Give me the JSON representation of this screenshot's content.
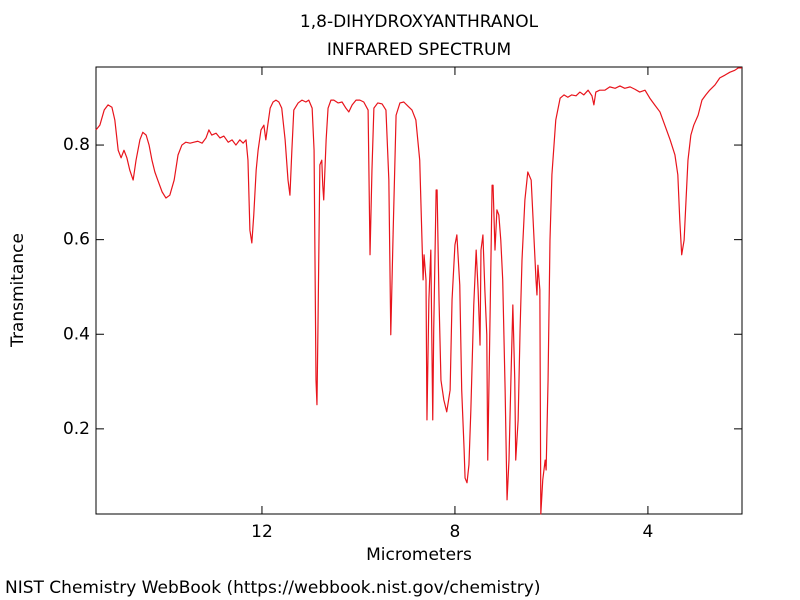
{
  "chart_data": {
    "type": "line",
    "title": "1,8-DIHYDROXYANTHRANOL",
    "subtitle": "INFRARED SPECTRUM",
    "x_label": "Micrometers",
    "y_label": "Transmitance",
    "footer": "NIST Chemistry WebBook (https://webbook.nist.gov/chemistry)",
    "color": "#e8141c",
    "xlim": [
      15.44,
      2.05
    ],
    "ylim": [
      0.02,
      0.965
    ],
    "xticks": [
      12,
      8,
      4
    ],
    "yticks": [
      0.2,
      0.4,
      0.6,
      0.8
    ],
    "grid": false,
    "x": [
      15.44,
      15.36,
      15.27,
      15.19,
      15.11,
      15.05,
      14.98,
      14.92,
      14.86,
      14.8,
      14.74,
      14.67,
      14.61,
      14.53,
      14.47,
      14.4,
      14.34,
      14.28,
      14.22,
      14.16,
      14.07,
      13.99,
      13.91,
      13.82,
      13.74,
      13.66,
      13.58,
      13.49,
      13.41,
      13.33,
      13.24,
      13.16,
      13.1,
      13.04,
      12.95,
      12.87,
      12.79,
      12.7,
      12.62,
      12.54,
      12.46,
      12.39,
      12.33,
      12.29,
      12.25,
      12.21,
      12.17,
      12.12,
      12.08,
      12.02,
      11.96,
      11.92,
      11.88,
      11.83,
      11.77,
      11.71,
      11.65,
      11.59,
      11.52,
      11.46,
      11.42,
      11.38,
      11.34,
      11.25,
      11.17,
      11.09,
      11.03,
      10.96,
      10.92,
      10.88,
      10.86,
      10.84,
      10.8,
      10.76,
      10.74,
      10.72,
      10.67,
      10.63,
      10.57,
      10.51,
      10.42,
      10.34,
      10.26,
      10.2,
      10.13,
      10.05,
      9.97,
      9.89,
      9.8,
      9.76,
      9.72,
      9.68,
      9.6,
      9.51,
      9.43,
      9.37,
      9.33,
      9.28,
      9.22,
      9.14,
      9.06,
      8.97,
      8.89,
      8.81,
      8.73,
      8.66,
      8.64,
      8.6,
      8.58,
      8.54,
      8.5,
      8.46,
      8.44,
      8.39,
      8.37,
      8.33,
      8.29,
      8.23,
      8.17,
      8.1,
      8.06,
      8.0,
      7.96,
      7.9,
      7.86,
      7.81,
      7.79,
      7.75,
      7.71,
      7.67,
      7.61,
      7.56,
      7.52,
      7.48,
      7.46,
      7.42,
      7.38,
      7.34,
      7.32,
      7.27,
      7.23,
      7.21,
      7.17,
      7.13,
      7.09,
      7.05,
      7.01,
      6.96,
      6.92,
      6.88,
      6.84,
      6.8,
      6.76,
      6.74,
      6.69,
      6.65,
      6.61,
      6.55,
      6.49,
      6.42,
      6.38,
      6.32,
      6.3,
      6.28,
      6.24,
      6.22,
      6.18,
      6.13,
      6.11,
      6.07,
      6.03,
      5.99,
      5.91,
      5.82,
      5.74,
      5.66,
      5.58,
      5.49,
      5.41,
      5.33,
      5.24,
      5.16,
      5.12,
      5.08,
      5.0,
      4.89,
      4.79,
      4.68,
      4.58,
      4.48,
      4.37,
      4.27,
      4.17,
      4.06,
      3.96,
      3.86,
      3.75,
      3.65,
      3.54,
      3.44,
      3.38,
      3.34,
      3.3,
      3.25,
      3.21,
      3.17,
      3.11,
      3.05,
      2.96,
      2.88,
      2.8,
      2.72,
      2.61,
      2.51,
      2.4,
      2.3,
      2.2,
      2.13,
      2.05
    ],
    "values": [
      0.832,
      0.842,
      0.874,
      0.885,
      0.88,
      0.853,
      0.789,
      0.773,
      0.789,
      0.773,
      0.747,
      0.726,
      0.768,
      0.811,
      0.827,
      0.821,
      0.8,
      0.768,
      0.743,
      0.726,
      0.701,
      0.688,
      0.694,
      0.726,
      0.779,
      0.8,
      0.806,
      0.804,
      0.806,
      0.808,
      0.804,
      0.815,
      0.832,
      0.821,
      0.825,
      0.815,
      0.819,
      0.806,
      0.811,
      0.8,
      0.811,
      0.804,
      0.811,
      0.768,
      0.62,
      0.593,
      0.652,
      0.747,
      0.789,
      0.832,
      0.842,
      0.811,
      0.842,
      0.878,
      0.891,
      0.895,
      0.891,
      0.878,
      0.811,
      0.726,
      0.694,
      0.789,
      0.874,
      0.889,
      0.895,
      0.891,
      0.895,
      0.878,
      0.789,
      0.303,
      0.251,
      0.409,
      0.758,
      0.768,
      0.715,
      0.684,
      0.811,
      0.878,
      0.895,
      0.895,
      0.889,
      0.891,
      0.878,
      0.87,
      0.885,
      0.895,
      0.895,
      0.891,
      0.874,
      0.568,
      0.747,
      0.878,
      0.889,
      0.887,
      0.874,
      0.726,
      0.399,
      0.62,
      0.863,
      0.889,
      0.891,
      0.882,
      0.874,
      0.853,
      0.768,
      0.515,
      0.568,
      0.515,
      0.219,
      0.473,
      0.578,
      0.219,
      0.409,
      0.705,
      0.705,
      0.473,
      0.303,
      0.261,
      0.236,
      0.282,
      0.473,
      0.589,
      0.61,
      0.504,
      0.282,
      0.156,
      0.096,
      0.086,
      0.124,
      0.24,
      0.462,
      0.578,
      0.494,
      0.377,
      0.578,
      0.61,
      0.494,
      0.399,
      0.134,
      0.451,
      0.715,
      0.715,
      0.578,
      0.663,
      0.652,
      0.599,
      0.515,
      0.282,
      0.05,
      0.134,
      0.303,
      0.462,
      0.303,
      0.134,
      0.219,
      0.409,
      0.557,
      0.684,
      0.743,
      0.726,
      0.642,
      0.515,
      0.483,
      0.546,
      0.494,
      0.02,
      0.092,
      0.134,
      0.113,
      0.303,
      0.599,
      0.737,
      0.853,
      0.899,
      0.906,
      0.901,
      0.906,
      0.904,
      0.912,
      0.906,
      0.916,
      0.904,
      0.885,
      0.912,
      0.916,
      0.916,
      0.923,
      0.92,
      0.925,
      0.92,
      0.923,
      0.918,
      0.912,
      0.916,
      0.899,
      0.885,
      0.87,
      0.842,
      0.811,
      0.779,
      0.737,
      0.642,
      0.568,
      0.599,
      0.684,
      0.768,
      0.821,
      0.842,
      0.863,
      0.895,
      0.906,
      0.916,
      0.927,
      0.942,
      0.948,
      0.954,
      0.958,
      0.963,
      0.963
    ]
  }
}
